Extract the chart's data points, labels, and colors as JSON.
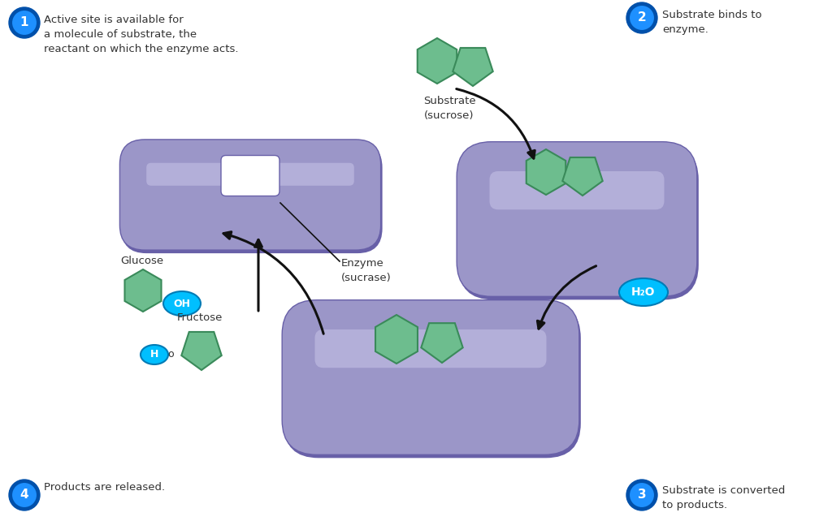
{
  "bg_color": "#ffffff",
  "enzyme_color": "#9B96C8",
  "enzyme_light": "#C8C4E8",
  "enzyme_dark": "#6860A8",
  "substrate_color": "#6DBD8E",
  "substrate_edge": "#3A8A5A",
  "badge_color": "#1E90FF",
  "badge_dark": "#0050AA",
  "water_badge_color": "#00BFFF",
  "text_color": "#333333",
  "arrow_color": "#111111",
  "label1": "Active site is available for\na molecule of substrate, the\nreactant on which the enzyme acts.",
  "label2": "Substrate binds to\nenzyme.",
  "label3": "Substrate is converted\nto products.",
  "label4": "Products are released.",
  "substrate_label": "Substrate\n(sucrose)",
  "enzyme_label": "Enzyme\n(sucrase)",
  "glucose_label": "Glucose",
  "fructose_label": "Fructose",
  "h2o_label": "H₂O"
}
